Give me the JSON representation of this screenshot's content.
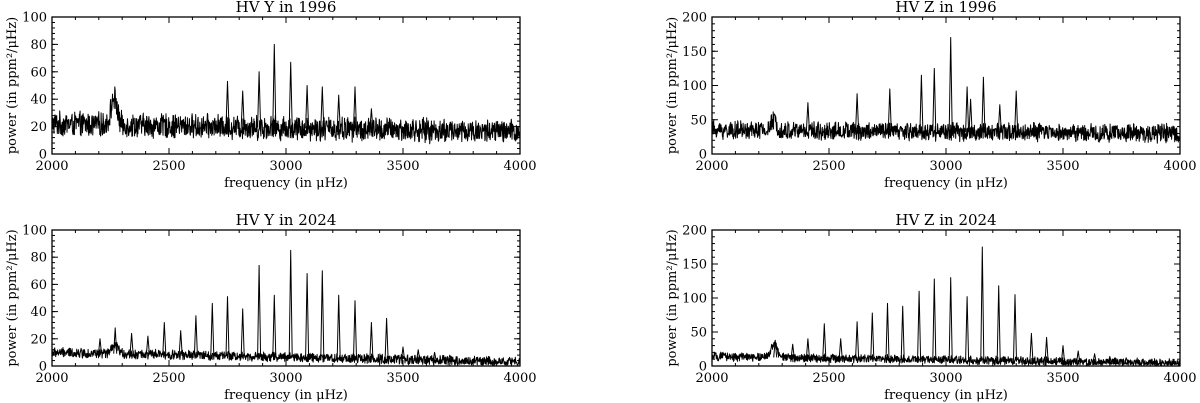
{
  "chart_data": [
    {
      "type": "line",
      "title": "HV Y in 1996",
      "xlabel": "frequency (in μHz)",
      "ylabel": "power (in ppm²/μHz)",
      "xlim": [
        2000,
        4000
      ],
      "ylim": [
        0,
        100
      ],
      "xticks": [
        "2000",
        "2500",
        "3000",
        "3500",
        "4000"
      ],
      "yticks": [
        "0",
        "20",
        "40",
        "60",
        "80",
        "100"
      ],
      "noise": {
        "base": 22,
        "spread": 10,
        "end_level": 16,
        "bump_center": 2265,
        "bump_height": 20
      },
      "peaks": [
        {
          "x": 2750,
          "y": 53
        },
        {
          "x": 2815,
          "y": 46
        },
        {
          "x": 2885,
          "y": 60
        },
        {
          "x": 2950,
          "y": 80
        },
        {
          "x": 3020,
          "y": 67
        },
        {
          "x": 3090,
          "y": 50
        },
        {
          "x": 3155,
          "y": 49
        },
        {
          "x": 3225,
          "y": 43
        },
        {
          "x": 3295,
          "y": 49
        },
        {
          "x": 3365,
          "y": 33
        }
      ]
    },
    {
      "type": "line",
      "title": "HV Z in 1996",
      "xlabel": "frequency (in μHz)",
      "ylabel": "power (in ppm²/μHz)",
      "xlim": [
        2000,
        4000
      ],
      "ylim": [
        0,
        200
      ],
      "xticks": [
        "2000",
        "2500",
        "3000",
        "3500",
        "4000"
      ],
      "yticks": [
        "0",
        "50",
        "100",
        "150",
        "200"
      ],
      "noise": {
        "base": 35,
        "spread": 15,
        "end_level": 30,
        "bump_center": 2265,
        "bump_height": 15
      },
      "peaks": [
        {
          "x": 2410,
          "y": 75
        },
        {
          "x": 2620,
          "y": 88
        },
        {
          "x": 2760,
          "y": 95
        },
        {
          "x": 2895,
          "y": 115
        },
        {
          "x": 2950,
          "y": 125
        },
        {
          "x": 3020,
          "y": 170
        },
        {
          "x": 3090,
          "y": 98
        },
        {
          "x": 3105,
          "y": 80
        },
        {
          "x": 3160,
          "y": 112
        },
        {
          "x": 3230,
          "y": 72
        },
        {
          "x": 3300,
          "y": 92
        }
      ]
    },
    {
      "type": "line",
      "title": "HV Y in 2024",
      "xlabel": "frequency (in μHz)",
      "ylabel": "power (in ppm²/μHz)",
      "xlim": [
        2000,
        4000
      ],
      "ylim": [
        0,
        100
      ],
      "xticks": [
        "2000",
        "2500",
        "3000",
        "3500",
        "4000"
      ],
      "yticks": [
        "0",
        "20",
        "40",
        "60",
        "80",
        "100"
      ],
      "noise": {
        "base": 10,
        "spread": 4,
        "end_level": 3,
        "bump_center": 2270,
        "bump_height": 6
      },
      "peaks": [
        {
          "x": 2205,
          "y": 20
        },
        {
          "x": 2270,
          "y": 28
        },
        {
          "x": 2340,
          "y": 24
        },
        {
          "x": 2410,
          "y": 22
        },
        {
          "x": 2480,
          "y": 32
        },
        {
          "x": 2550,
          "y": 26
        },
        {
          "x": 2615,
          "y": 37
        },
        {
          "x": 2685,
          "y": 46
        },
        {
          "x": 2750,
          "y": 51
        },
        {
          "x": 2815,
          "y": 42
        },
        {
          "x": 2885,
          "y": 74
        },
        {
          "x": 2950,
          "y": 52
        },
        {
          "x": 3020,
          "y": 85
        },
        {
          "x": 3090,
          "y": 68
        },
        {
          "x": 3155,
          "y": 70
        },
        {
          "x": 3225,
          "y": 52
        },
        {
          "x": 3295,
          "y": 48
        },
        {
          "x": 3365,
          "y": 32
        },
        {
          "x": 3430,
          "y": 35
        },
        {
          "x": 3500,
          "y": 14
        },
        {
          "x": 3565,
          "y": 12
        },
        {
          "x": 3635,
          "y": 10
        },
        {
          "x": 3700,
          "y": 8
        },
        {
          "x": 3770,
          "y": 6
        },
        {
          "x": 3840,
          "y": 5
        }
      ]
    },
    {
      "type": "line",
      "title": "HV Z in 2024",
      "xlabel": "frequency (in μHz)",
      "ylabel": "power (in ppm²/μHz)",
      "xlim": [
        2000,
        4000
      ],
      "ylim": [
        0,
        200
      ],
      "xticks": [
        "2000",
        "2500",
        "3000",
        "3500",
        "4000"
      ],
      "yticks": [
        "0",
        "50",
        "100",
        "150",
        "200"
      ],
      "noise": {
        "base": 14,
        "spread": 7,
        "end_level": 4,
        "bump_center": 2265,
        "bump_height": 20
      },
      "peaks": [
        {
          "x": 2270,
          "y": 38
        },
        {
          "x": 2345,
          "y": 32
        },
        {
          "x": 2410,
          "y": 40
        },
        {
          "x": 2480,
          "y": 62
        },
        {
          "x": 2550,
          "y": 40
        },
        {
          "x": 2620,
          "y": 65
        },
        {
          "x": 2685,
          "y": 78
        },
        {
          "x": 2750,
          "y": 92
        },
        {
          "x": 2815,
          "y": 88
        },
        {
          "x": 2885,
          "y": 110
        },
        {
          "x": 2950,
          "y": 128
        },
        {
          "x": 3020,
          "y": 130
        },
        {
          "x": 3090,
          "y": 102
        },
        {
          "x": 3155,
          "y": 175
        },
        {
          "x": 3225,
          "y": 118
        },
        {
          "x": 3295,
          "y": 105
        },
        {
          "x": 3365,
          "y": 48
        },
        {
          "x": 3430,
          "y": 42
        },
        {
          "x": 3500,
          "y": 30
        },
        {
          "x": 3565,
          "y": 22
        },
        {
          "x": 3635,
          "y": 18
        },
        {
          "x": 3700,
          "y": 14
        },
        {
          "x": 3770,
          "y": 12
        }
      ]
    }
  ]
}
